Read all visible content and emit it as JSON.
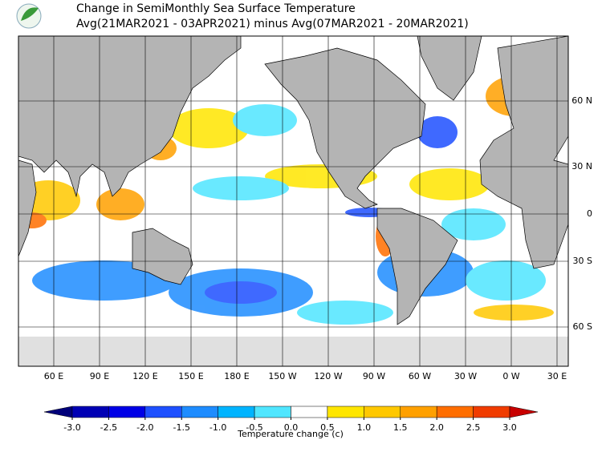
{
  "header": {
    "title_line1": "Change in SemiMonthly Sea Surface Temperature",
    "title_line2": "Avg(21MAR2021 - 03APR2021) minus Avg(07MAR2021 - 20MAR2021)"
  },
  "map": {
    "longitude_labels": [
      "60 E",
      "90 E",
      "120 E",
      "150 E",
      "180 E",
      "150 W",
      "120 W",
      "90 W",
      "60 W",
      "30 W",
      "0 W",
      "30 E"
    ],
    "latitude_labels": [
      "60 N",
      "30 N",
      "0",
      "30 S",
      "60 S"
    ]
  },
  "colorbar": {
    "label": "Temperature change  (c)",
    "ticks": [
      {
        "value": -3,
        "label": "-3.0"
      },
      {
        "value": -2.5,
        "label": "-2.5"
      },
      {
        "value": -2,
        "label": "-2.0"
      },
      {
        "value": -1.5,
        "label": "-1.5"
      },
      {
        "value": -1,
        "label": "-1.0"
      },
      {
        "value": -0.5,
        "label": "-0.5"
      },
      {
        "value": 0,
        "label": "0.0"
      },
      {
        "value": 0.5,
        "label": "0.5"
      },
      {
        "value": 1,
        "label": "1.0"
      },
      {
        "value": 1.5,
        "label": "1.5"
      },
      {
        "value": 2,
        "label": "2.0"
      },
      {
        "value": 2.5,
        "label": "2.5"
      },
      {
        "value": 3,
        "label": "3.0"
      }
    ],
    "colors": [
      "#00007a",
      "#0000b4",
      "#0000e6",
      "#1e50ff",
      "#1e8cff",
      "#00b4ff",
      "#50e6ff",
      "#ffffff",
      "#ffe600",
      "#ffc800",
      "#ffa000",
      "#ff6e00",
      "#f03c00",
      "#c80000"
    ]
  }
}
